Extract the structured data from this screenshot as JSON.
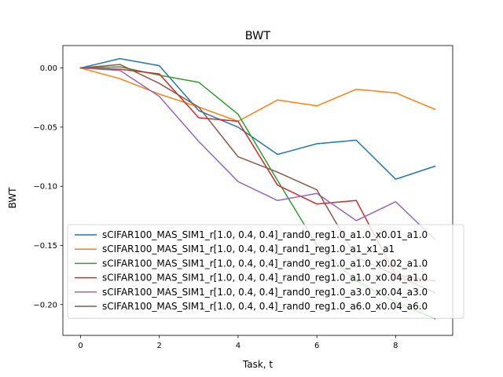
{
  "chart_data": {
    "type": "line",
    "title": "BWT",
    "xlabel": "Task, t",
    "ylabel": "BWT",
    "xlim": [
      -0.45,
      9.45
    ],
    "ylim": [
      -0.226,
      0.019
    ],
    "xticks": [
      0,
      2,
      4,
      6,
      8
    ],
    "yticks": [
      0.0,
      -0.05,
      -0.1,
      -0.15,
      -0.2
    ],
    "xtick_labels": [
      "0",
      "2",
      "4",
      "6",
      "8"
    ],
    "ytick_labels": [
      "0.00",
      "−0.05",
      "−0.10",
      "−0.15",
      "−0.20"
    ],
    "grid": false,
    "legend_position": "lower-right",
    "x": [
      0,
      1,
      2,
      3,
      4,
      5,
      6,
      7,
      8,
      9
    ],
    "series": [
      {
        "name": "sCIFAR100_MAS_SIM1_r[1.0, 0.4, 0.4]_rand0_reg1.0_a1.0_x0.01_a1.0",
        "color": "#1f77b4",
        "values": [
          0.0,
          0.008,
          0.002,
          -0.036,
          -0.05,
          -0.073,
          -0.064,
          -0.061,
          -0.094,
          -0.083
        ]
      },
      {
        "name": "sCIFAR100_MAS_SIM1_r[1.0, 0.4, 0.4]_rand1_reg1.0_a1_x1_a1",
        "color": "#ff7f0e",
        "values": [
          0.0,
          -0.009,
          -0.022,
          -0.033,
          -0.045,
          -0.027,
          -0.032,
          -0.018,
          -0.021,
          -0.035
        ]
      },
      {
        "name": "sCIFAR100_MAS_SIM1_r[1.0, 0.4, 0.4]_rand0_reg1.0_a1.0_x0.02_a1.0",
        "color": "#2ca02c",
        "values": [
          0.0,
          0.001,
          -0.006,
          -0.012,
          -0.039,
          -0.095,
          -0.15,
          -0.18,
          -0.198,
          -0.212
        ]
      },
      {
        "name": "sCIFAR100_MAS_SIM1_r[1.0, 0.4, 0.4]_rand0_reg1.0_a1.0_x0.04_a1.0",
        "color": "#d62728",
        "values": [
          0.0,
          -0.001,
          -0.005,
          -0.042,
          -0.045,
          -0.099,
          -0.115,
          -0.112,
          -0.175,
          -0.18
        ]
      },
      {
        "name": "sCIFAR100_MAS_SIM1_r[1.0, 0.4, 0.4]_rand0_reg1.0_a3.0_x0.04_a3.0",
        "color": "#9467bd",
        "values": [
          0.0,
          -0.002,
          -0.024,
          -0.062,
          -0.096,
          -0.112,
          -0.106,
          -0.129,
          -0.113,
          -0.145
        ]
      },
      {
        "name": "sCIFAR100_MAS_SIM1_r[1.0, 0.4, 0.4]_rand0_reg1.0_a6.0_x0.04_a6.0",
        "color": "#8c564b",
        "values": [
          0.0,
          0.003,
          -0.013,
          -0.033,
          -0.075,
          -0.088,
          -0.103,
          -0.16,
          -0.175,
          -0.19
        ]
      }
    ]
  }
}
